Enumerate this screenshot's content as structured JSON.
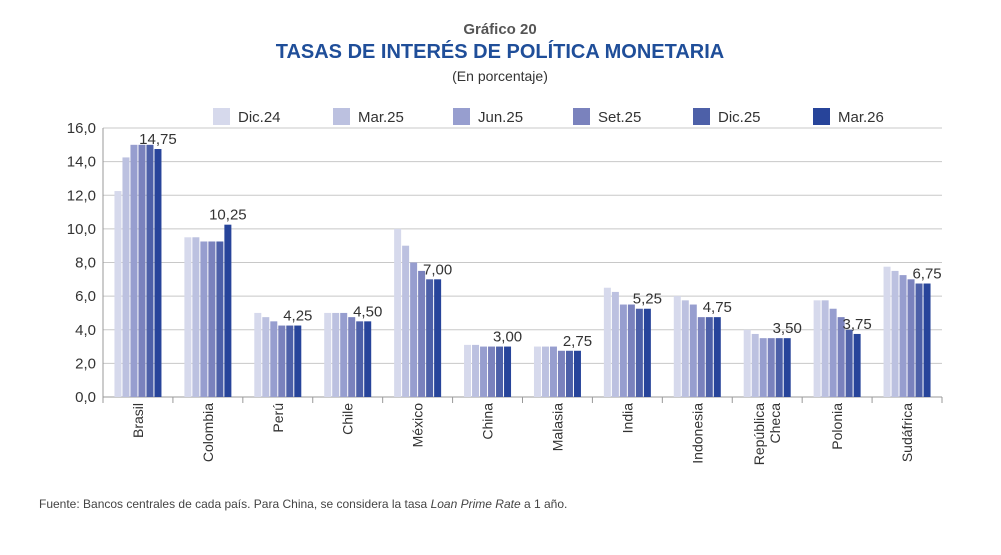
{
  "header": {
    "supertitle": "Gráfico 20",
    "title": "TASAS DE INTERÉS DE POLÍTICA MONETARIA",
    "subtitle": "(En porcentaje)"
  },
  "footer": {
    "source_prefix": "Fuente: Bancos centrales de cada país. Para China, se considera la tasa ",
    "source_italic": "Loan Prime Rate",
    "source_suffix": " a 1 año."
  },
  "chart_data": {
    "type": "bar",
    "title": "TASAS DE INTERÉS DE POLÍTICA MONETARIA",
    "subtitle": "(En porcentaje)",
    "ylim": [
      0,
      16
    ],
    "yticks": [
      0,
      2,
      4,
      6,
      8,
      10,
      12,
      14,
      16
    ],
    "ytick_labels": [
      "0,0",
      "2,0",
      "4,0",
      "6,0",
      "8,0",
      "10,0",
      "12,0",
      "14,0",
      "16,0"
    ],
    "grid": true,
    "legend_position": "top",
    "categories": [
      [
        "Brasil"
      ],
      [
        "Colombia"
      ],
      [
        "Perú"
      ],
      [
        "Chile"
      ],
      [
        "México"
      ],
      [
        "China"
      ],
      [
        "Malasia"
      ],
      [
        "India"
      ],
      [
        "Indonesia"
      ],
      [
        "República",
        "Checa"
      ],
      [
        "Polonia"
      ],
      [
        "Sudáfrica"
      ]
    ],
    "series": [
      {
        "name": "Dic.24",
        "color": "#d6d9ec",
        "values": [
          12.25,
          9.5,
          5.0,
          5.0,
          10.0,
          3.1,
          3.0,
          6.5,
          6.0,
          4.0,
          5.75,
          7.75
        ]
      },
      {
        "name": "Mar.25",
        "color": "#bcc1e0",
        "values": [
          14.25,
          9.5,
          4.75,
          5.0,
          9.0,
          3.1,
          3.0,
          6.25,
          5.75,
          3.75,
          5.75,
          7.5
        ]
      },
      {
        "name": "Jun.25",
        "color": "#979ecf",
        "values": [
          15.0,
          9.25,
          4.5,
          5.0,
          8.0,
          3.0,
          3.0,
          5.5,
          5.5,
          3.5,
          5.25,
          7.25
        ]
      },
      {
        "name": "Set.25",
        "color": "#7a82bd",
        "values": [
          15.0,
          9.25,
          4.25,
          4.75,
          7.5,
          3.0,
          2.75,
          5.5,
          4.75,
          3.5,
          4.75,
          7.0
        ]
      },
      {
        "name": "Dic.25",
        "color": "#4d60a8",
        "values": [
          15.0,
          9.25,
          4.25,
          4.5,
          7.0,
          3.0,
          2.75,
          5.25,
          4.75,
          3.5,
          4.0,
          6.75
        ]
      },
      {
        "name": "Mar.26",
        "color": "#27449a",
        "values": [
          14.75,
          10.25,
          4.25,
          4.5,
          7.0,
          3.0,
          2.75,
          5.25,
          4.75,
          3.5,
          3.75,
          6.75
        ]
      }
    ],
    "data_labels": [
      "14,75",
      "10,25",
      "4,25",
      "4,50",
      "7,00",
      "3,00",
      "2,75",
      "5,25",
      "4,75",
      "3,50",
      "3,75",
      "6,75"
    ]
  }
}
